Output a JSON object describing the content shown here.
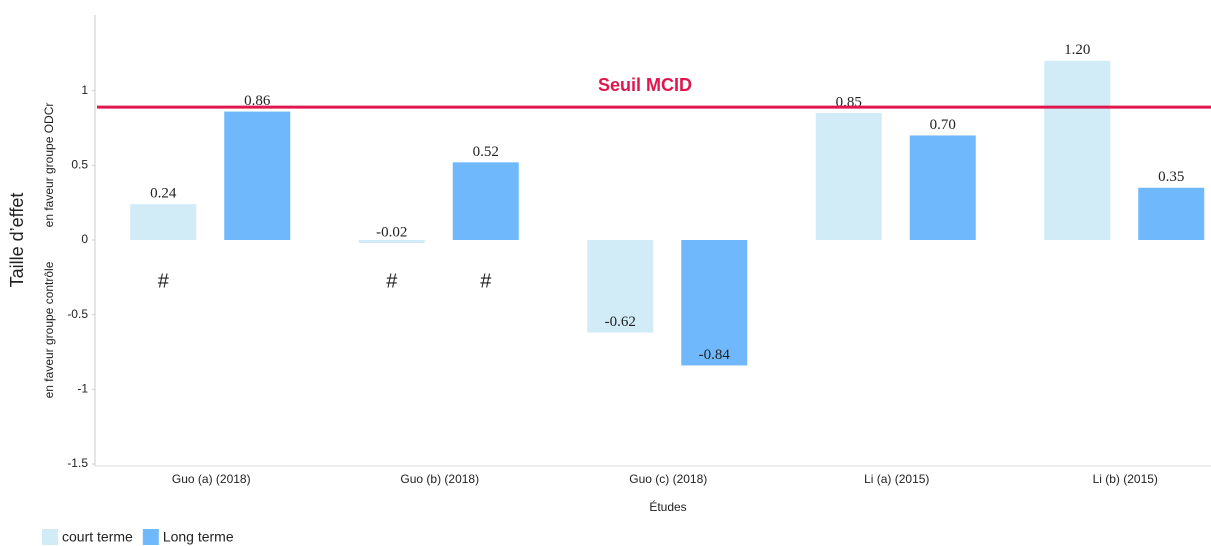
{
  "chart_data": {
    "type": "bar",
    "y_label": "Taille d’effet",
    "y_label_top": "en faveur groupe ODCr",
    "y_label_bottom": "en faveur groupe contrôle",
    "x_label": "Études",
    "categories": [
      "Guo (a) (2018)",
      "Guo (b) (2018)",
      "Guo (c) (2018)",
      "Li (a) (2015)",
      "Li (b) (2015)"
    ],
    "series": [
      {
        "name": "court terme",
        "color": "#d1ebf7",
        "values": [
          0.24,
          -0.02,
          -0.62,
          0.85,
          1.2
        ],
        "value_labels": [
          "0.24",
          "-0.02",
          "-0.62",
          "0.85",
          "1.20"
        ]
      },
      {
        "name": "Long terme",
        "color": "#6fb8fb",
        "values": [
          0.86,
          0.52,
          -0.84,
          0.7,
          0.35
        ],
        "value_labels": [
          "0.86",
          "0.52",
          "-0.84",
          "0.70",
          "0.35"
        ]
      }
    ],
    "reference_line": {
      "label": "Seuil MCID",
      "value": 0.89,
      "color": "#e0174f"
    },
    "annotations": [
      {
        "label": "#",
        "category": "Guo (a) (2018)",
        "series": "court terme"
      },
      {
        "label": "#",
        "category": "Guo (b) (2018)",
        "series": "court terme"
      },
      {
        "label": "#",
        "category": "Guo (b) (2018)",
        "series": "Long terme"
      }
    ],
    "ylim": [
      -1.5,
      1.5
    ],
    "yticks": [
      -1.5,
      -1,
      -0.5,
      0,
      0.5,
      1
    ],
    "grid": false,
    "legend": "bottom-left"
  }
}
